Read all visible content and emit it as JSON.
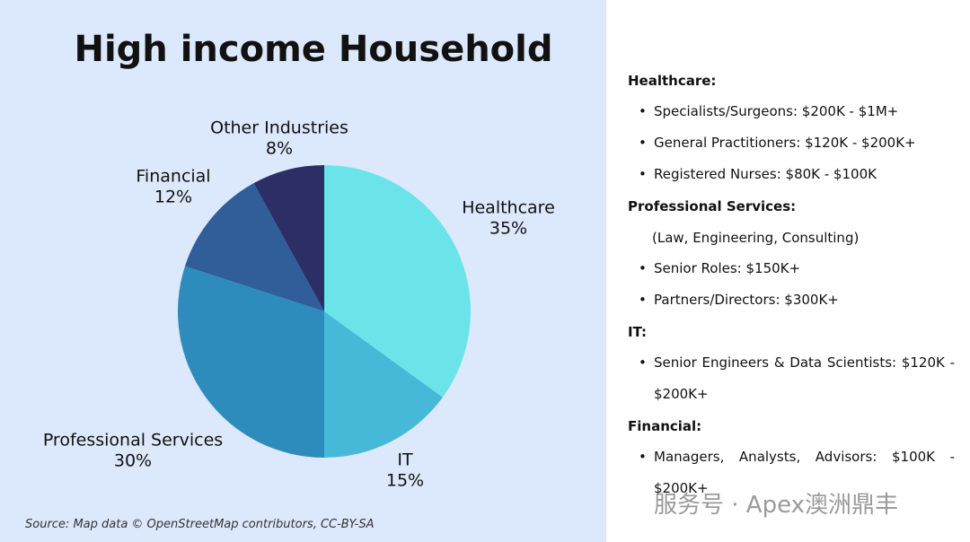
{
  "chart_data": {
    "type": "pie",
    "title": "High income Household",
    "categories": [
      "Healthcare",
      "IT",
      "Professional Services",
      "Financial",
      "Other Industries"
    ],
    "values": [
      35,
      15,
      30,
      12,
      8
    ],
    "value_labels": [
      "35%",
      "15%",
      "30%",
      "12%",
      "8%"
    ],
    "colors": [
      "#6ae4e9",
      "#46b9d9",
      "#2e8cbc",
      "#2f5e99",
      "#2b2f66"
    ]
  },
  "source": "Source: Map data © OpenStreetMap contributors, CC-BY-SA",
  "panel": {
    "sections": [
      {
        "heading": "Healthcare:",
        "items": [
          "Specialists/Surgeons: $200K - $1M+",
          "General Practitioners: $120K - $200K+",
          "Registered Nurses: $80K - $100K"
        ]
      },
      {
        "heading": "Professional Services:",
        "note": "(Law, Engineering, Consulting)",
        "items": [
          "Senior Roles: $150K+",
          "Partners/Directors: $300K+"
        ]
      },
      {
        "heading": "IT:",
        "items": [
          "Senior Engineers & Data Scientists: $120K - $200K+"
        ]
      },
      {
        "heading": "Financial:",
        "items": [
          "Managers, Analysts, Advisors: $100K - $200K+"
        ]
      }
    ]
  },
  "watermark": "服务号 · Apex澳洲鼎丰"
}
